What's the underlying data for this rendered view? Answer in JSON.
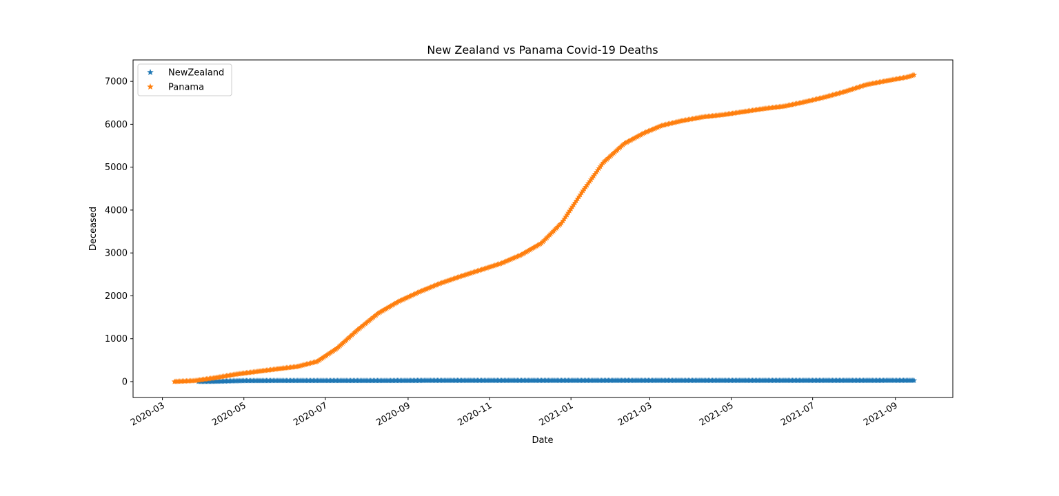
{
  "chart_data": {
    "type": "scatter",
    "title": "New Zealand vs Panama Covid-19 Deaths",
    "xlabel": "Date",
    "ylabel": "Deceased",
    "xlim": [
      "2020-02-08",
      "2021-10-14"
    ],
    "ylim": [
      -370,
      7500
    ],
    "x_ticks": [
      "2020-03",
      "2020-05",
      "2020-07",
      "2020-09",
      "2020-11",
      "2021-01",
      "2021-03",
      "2021-05",
      "2021-07",
      "2021-09"
    ],
    "y_ticks": [
      0,
      1000,
      2000,
      3000,
      4000,
      5000,
      6000,
      7000
    ],
    "marker": "star",
    "legend_position": "upper-left",
    "series": [
      {
        "name": "NewZealand",
        "color": "#1f77b4",
        "x": [
          "2020-03-28",
          "2020-04-10",
          "2020-04-20",
          "2020-05-01",
          "2020-05-15",
          "2020-05-27",
          "2020-06-15",
          "2020-07-15",
          "2020-08-15",
          "2020-09-15",
          "2020-10-15",
          "2020-11-15",
          "2020-12-15",
          "2021-01-15",
          "2021-02-15",
          "2021-03-15",
          "2021-04-15",
          "2021-05-15",
          "2021-06-15",
          "2021-07-15",
          "2021-08-15",
          "2021-09-15"
        ],
        "y": [
          1,
          4,
          12,
          20,
          21,
          22,
          22,
          22,
          22,
          25,
          25,
          25,
          25,
          25,
          26,
          26,
          26,
          26,
          26,
          26,
          26,
          27
        ]
      },
      {
        "name": "Panama",
        "color": "#ff7f0e",
        "x": [
          "2020-03-10",
          "2020-03-25",
          "2020-04-10",
          "2020-04-25",
          "2020-05-10",
          "2020-05-25",
          "2020-06-10",
          "2020-06-25",
          "2020-07-10",
          "2020-07-25",
          "2020-08-10",
          "2020-08-25",
          "2020-09-10",
          "2020-09-25",
          "2020-10-10",
          "2020-10-25",
          "2020-11-10",
          "2020-11-25",
          "2020-12-10",
          "2020-12-25",
          "2021-01-10",
          "2021-01-25",
          "2021-02-10",
          "2021-02-25",
          "2021-03-10",
          "2021-03-25",
          "2021-04-10",
          "2021-04-25",
          "2021-05-10",
          "2021-05-25",
          "2021-06-10",
          "2021-06-25",
          "2021-07-10",
          "2021-07-25",
          "2021-08-10",
          "2021-08-25",
          "2021-09-10",
          "2021-09-15"
        ],
        "y": [
          0,
          20,
          90,
          170,
          230,
          290,
          350,
          470,
          780,
          1200,
          1600,
          1870,
          2100,
          2290,
          2450,
          2600,
          2760,
          2960,
          3230,
          3700,
          4450,
          5100,
          5550,
          5800,
          5970,
          6080,
          6170,
          6220,
          6290,
          6360,
          6420,
          6520,
          6630,
          6760,
          6920,
          7010,
          7100,
          7150
        ]
      }
    ]
  }
}
